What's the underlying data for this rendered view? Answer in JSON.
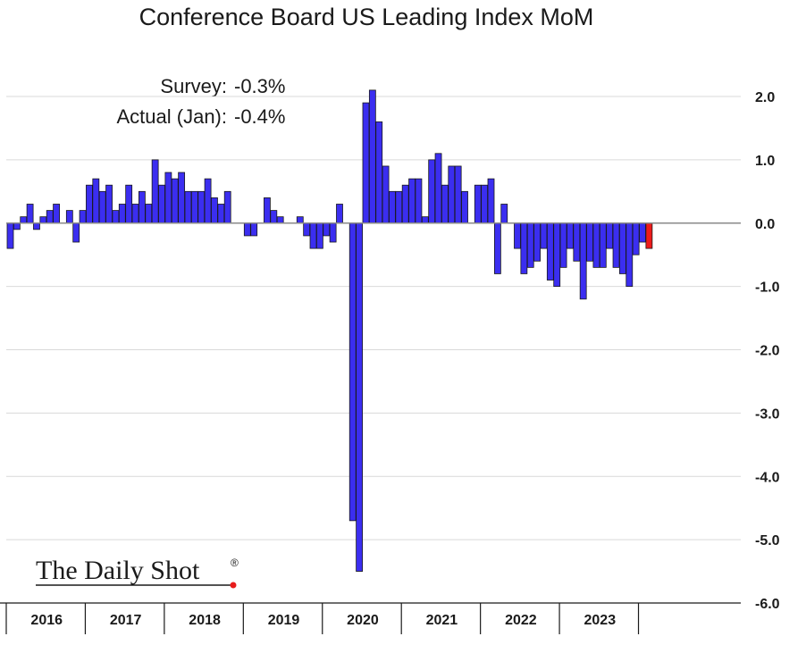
{
  "chart_data": {
    "type": "bar",
    "title": "Conference Board US Leading Index MoM",
    "annotations": [
      {
        "label": "Survey:",
        "value": "-0.3%"
      },
      {
        "label": "Actual (Jan):",
        "value": "-0.4%"
      }
    ],
    "watermark": "The Daily Shot",
    "watermark_mark": "®",
    "y_axis": {
      "position": "right",
      "ylim": [
        -6.0,
        2.0
      ],
      "ticks": [
        "2.0",
        "1.0",
        "0.0",
        "-1.0",
        "-2.0",
        "-3.0",
        "-4.0",
        "-5.0",
        "-6.0"
      ],
      "tick_values": [
        2,
        1,
        0,
        -1,
        -2,
        -3,
        -4,
        -5,
        -6
      ]
    },
    "x_axis": {
      "year_labels": [
        "2016",
        "2017",
        "2018",
        "2019",
        "2020",
        "2021",
        "2022",
        "2023"
      ],
      "months_per_year": 12
    },
    "grid": "horizontal",
    "colors": {
      "bar": "#3b2ef0",
      "last_bar": "#ee1b1b",
      "bar_edge": "#1a1a1a",
      "grid": "#d9d9d9"
    },
    "highlight_last": true,
    "values": [
      -0.4,
      -0.1,
      0.1,
      0.3,
      -0.1,
      0.1,
      0.2,
      0.3,
      0.0,
      0.2,
      -0.3,
      0.2,
      0.6,
      0.7,
      0.5,
      0.6,
      0.2,
      0.3,
      0.6,
      0.3,
      0.5,
      0.3,
      1.0,
      0.6,
      0.8,
      0.7,
      0.8,
      0.5,
      0.5,
      0.5,
      0.7,
      0.4,
      0.3,
      0.5,
      0.0,
      0.0,
      -0.2,
      -0.2,
      0.0,
      0.4,
      0.2,
      0.1,
      0.0,
      0.0,
      0.1,
      -0.2,
      -0.4,
      -0.4,
      -0.2,
      -0.3,
      0.3,
      0.0,
      -4.7,
      -5.5,
      1.9,
      2.1,
      1.6,
      0.9,
      0.5,
      0.5,
      0.6,
      0.7,
      0.7,
      0.1,
      1.0,
      1.1,
      0.6,
      0.9,
      0.9,
      0.5,
      0.0,
      0.6,
      0.6,
      0.7,
      -0.8,
      0.3,
      0.0,
      -0.4,
      -0.8,
      -0.7,
      -0.6,
      -0.4,
      -0.9,
      -1.0,
      -0.7,
      -0.4,
      -0.6,
      -1.2,
      -0.6,
      -0.7,
      -0.7,
      -0.4,
      -0.7,
      -0.8,
      -1.0,
      -0.5,
      -0.3,
      -0.4
    ]
  }
}
